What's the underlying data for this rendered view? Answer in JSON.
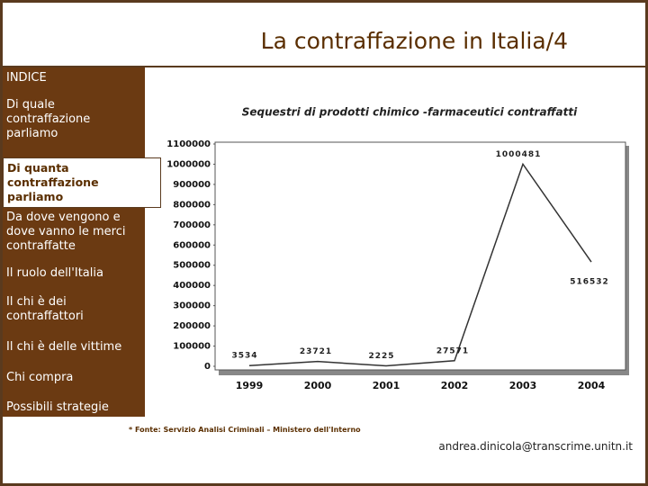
{
  "slide": {
    "title": "La contraffazione in Italia/4",
    "menu_heading": "INDICE",
    "menu": [
      "Di quale contraffazione parliamo",
      "Di quanta contraffazione parliamo",
      "Da dove vengono e dove vanno le merci contraffatte",
      "Il ruolo dell'Italia",
      "Il chi è dei contraffattori",
      "Il chi è delle vittime",
      "Chi compra",
      "Possibili strategie"
    ],
    "footnote": "* Fonte: Servizio Analisi Criminali – Ministero dell'Interno",
    "email": "andrea.dinicola@transcrime.unitn.it"
  },
  "chart_data": {
    "type": "line",
    "title": "Sequestri di prodotti chimico -farmaceutici contraffatti",
    "categories": [
      "1999",
      "2000",
      "2001",
      "2002",
      "2003",
      "2004"
    ],
    "values": [
      3534,
      23721,
      2225,
      27571,
      1000481,
      516532
    ],
    "color": "#333333",
    "ylim": [
      0,
      1100000
    ],
    "yticks": [
      0,
      100000,
      200000,
      300000,
      400000,
      500000,
      600000,
      700000,
      800000,
      900000,
      1000000,
      1100000
    ],
    "grid": false
  }
}
